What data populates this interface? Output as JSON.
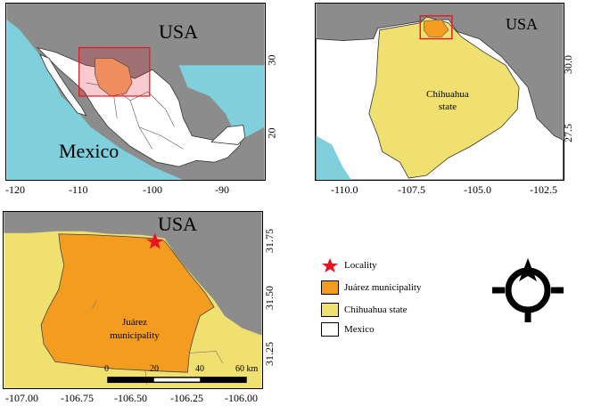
{
  "map1": {
    "country_usa": "USA",
    "country_mexico": "Mexico",
    "x_ticks": [
      "-120",
      "-110",
      "-100",
      "-90"
    ],
    "y_ticks": [
      "30",
      "20"
    ]
  },
  "map2": {
    "country_usa": "USA",
    "state_label_1": "Chihuahua",
    "state_label_2": "state",
    "x_ticks": [
      "-110.0",
      "-107.5",
      "-105.0",
      "-102.5"
    ],
    "y_ticks": [
      "30.0",
      "27.5"
    ]
  },
  "map3": {
    "country_usa": "USA",
    "municipality_label_1": "Juárez",
    "municipality_label_2": "municipality",
    "x_ticks": [
      "-107.00",
      "-106.75",
      "-106.50",
      "-106.25",
      "-106.00"
    ],
    "y_ticks": [
      "31.75",
      "31.50",
      "31.25"
    ],
    "scalebar": {
      "labels": [
        "0",
        "20",
        "40",
        "60 km"
      ]
    }
  },
  "legend": {
    "items": [
      {
        "label": "Locality",
        "symbol": "star",
        "color": "#e8141e"
      },
      {
        "label": "Juárez municipality",
        "symbol": "box",
        "color": "#f39c1f"
      },
      {
        "label": "Chihuahua state",
        "symbol": "box",
        "color": "#f0e070"
      },
      {
        "label": "Mexico",
        "symbol": "box",
        "color": "#ffffff"
      }
    ]
  },
  "colors": {
    "usa_gray": "#8c8c8c",
    "ocean": "#7fcfdc",
    "mexico": "#ffffff",
    "chihuahua": "#f0e070",
    "juarez": "#f39c1f",
    "highlight": "#e8141e"
  },
  "icons": {
    "north_arrow": "north-arrow-icon"
  }
}
